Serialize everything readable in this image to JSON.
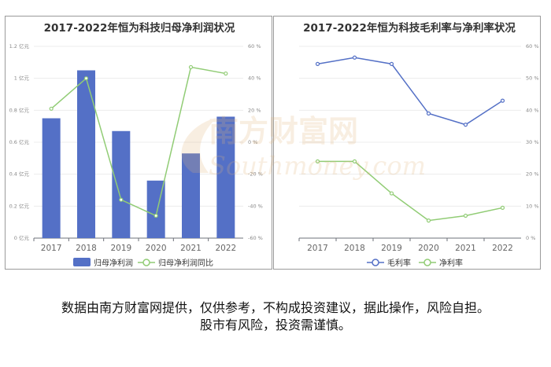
{
  "chart_data": [
    {
      "type": "bar",
      "title": "2017-2022年恒为科技归母净利润状况",
      "categories": [
        "2017",
        "2018",
        "2019",
        "2020",
        "2021",
        "2022"
      ],
      "series": [
        {
          "name": "归母净利润",
          "type": "bar",
          "axis": "left",
          "values": [
            0.75,
            1.05,
            0.67,
            0.36,
            0.53,
            0.76
          ],
          "color": "#5470c6"
        },
        {
          "name": "归母净利润同比",
          "type": "line",
          "axis": "right",
          "values": [
            21,
            40,
            -36,
            -46,
            47,
            43
          ],
          "color": "#91cc75"
        }
      ],
      "y_left": {
        "min": 0,
        "max": 1.2,
        "ticks": [
          "0 亿元",
          "0.2 亿元",
          "0.4 亿元",
          "0.6 亿元",
          "0.8 亿元",
          "1 亿元",
          "1.2 亿元"
        ]
      },
      "y_right": {
        "min": -60,
        "max": 60,
        "ticks": [
          "-60 %",
          "-40 %",
          "-20 %",
          "0 %",
          "20 %",
          "40 %",
          "60 %"
        ]
      },
      "legend_position": "bottom-center"
    },
    {
      "type": "line",
      "title": "2017-2022年恒为科技毛利率与净利率状况",
      "categories": [
        "2017",
        "2018",
        "2019",
        "2020",
        "2021",
        "2022"
      ],
      "series": [
        {
          "name": "毛利率",
          "values": [
            54.5,
            56.5,
            54.5,
            39,
            35.5,
            43
          ],
          "color": "#5470c6"
        },
        {
          "name": "净利率",
          "values": [
            24,
            24,
            14,
            5.5,
            7,
            9.5
          ],
          "color": "#91cc75"
        }
      ],
      "y_right": {
        "min": 0,
        "max": 60,
        "ticks": [
          "0 %",
          "10 %",
          "20 %",
          "30 %",
          "40 %",
          "50 %",
          "60 %"
        ]
      },
      "legend_position": "bottom-center"
    }
  ],
  "watermark": {
    "cn": "南方财富网",
    "en": "Southmoney.com",
    "color": "#e3b47a"
  },
  "disclaimer": {
    "line1": "数据由南方财富网提供，仅供参考，不构成投资建议，据此操作，风险自担。",
    "line2": "股市有风险，投资需谨慎。"
  }
}
